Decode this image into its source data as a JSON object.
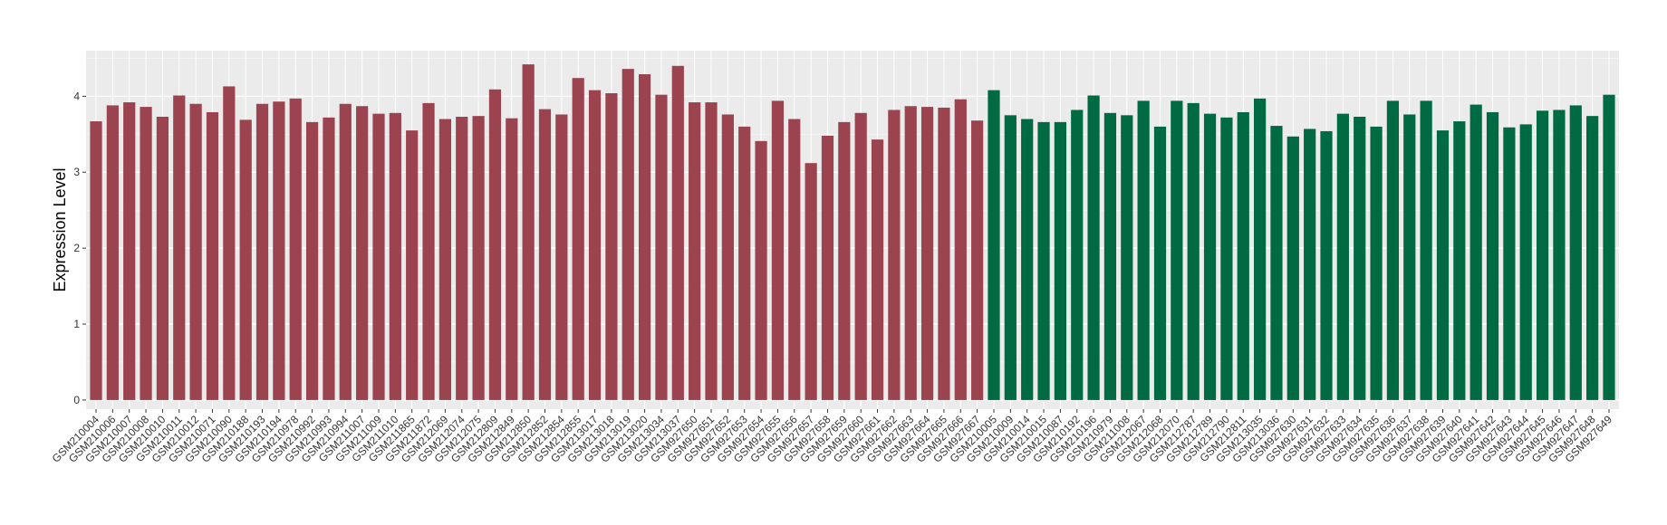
{
  "chart_data": {
    "type": "bar",
    "title": "",
    "xlabel": "",
    "ylabel": "Expression Level",
    "ylim": [
      -0.12,
      4.6
    ],
    "yticks": [
      0,
      1,
      2,
      3,
      4
    ],
    "grid": true,
    "panel_background": "#EBEBEB",
    "colors": {
      "group1": "#9B4450",
      "group2": "#006A43"
    },
    "categories": [
      "GSM210004",
      "GSM210006",
      "GSM210007",
      "GSM210008",
      "GSM210010",
      "GSM210011",
      "GSM210012",
      "GSM210071",
      "GSM210090",
      "GSM210188",
      "GSM210193",
      "GSM210194",
      "GSM210978",
      "GSM210992",
      "GSM210993",
      "GSM210994",
      "GSM211007",
      "GSM211009",
      "GSM211010",
      "GSM211865",
      "GSM211872",
      "GSM212069",
      "GSM212074",
      "GSM212075",
      "GSM212809",
      "GSM212849",
      "GSM212850",
      "GSM212852",
      "GSM212854",
      "GSM212855",
      "GSM213017",
      "GSM213018",
      "GSM213019",
      "GSM213020",
      "GSM213034",
      "GSM213037",
      "GSM927650",
      "GSM927651",
      "GSM927652",
      "GSM927653",
      "GSM927654",
      "GSM927655",
      "GSM927656",
      "GSM927657",
      "GSM927658",
      "GSM927659",
      "GSM927660",
      "GSM927661",
      "GSM927662",
      "GSM927663",
      "GSM927664",
      "GSM927665",
      "GSM927666",
      "GSM927667",
      "GSM210005",
      "GSM210009",
      "GSM210014",
      "GSM210015",
      "GSM210087",
      "GSM210192",
      "GSM210196",
      "GSM210979",
      "GSM211008",
      "GSM212067",
      "GSM212068",
      "GSM212070",
      "GSM212787",
      "GSM212789",
      "GSM212790",
      "GSM212811",
      "GSM213035",
      "GSM213036",
      "GSM927630",
      "GSM927631",
      "GSM927632",
      "GSM927633",
      "GSM927634",
      "GSM927635",
      "GSM927636",
      "GSM927637",
      "GSM927638",
      "GSM927639",
      "GSM927640",
      "GSM927641",
      "GSM927642",
      "GSM927643",
      "GSM927644",
      "GSM927645",
      "GSM927646",
      "GSM927647",
      "GSM927648",
      "GSM927649"
    ],
    "groups": [
      1,
      1,
      1,
      1,
      1,
      1,
      1,
      1,
      1,
      1,
      1,
      1,
      1,
      1,
      1,
      1,
      1,
      1,
      1,
      1,
      1,
      1,
      1,
      1,
      1,
      1,
      1,
      1,
      1,
      1,
      1,
      1,
      1,
      1,
      1,
      1,
      1,
      1,
      1,
      1,
      1,
      1,
      1,
      1,
      1,
      1,
      1,
      1,
      1,
      1,
      1,
      1,
      1,
      1,
      2,
      2,
      2,
      2,
      2,
      2,
      2,
      2,
      2,
      2,
      2,
      2,
      2,
      2,
      2,
      2,
      2,
      2,
      2,
      2,
      2,
      2,
      2,
      2,
      2,
      2,
      2,
      2,
      2,
      2,
      2,
      2,
      2,
      2,
      2,
      2,
      2,
      2
    ],
    "values": [
      3.67,
      3.88,
      3.92,
      3.86,
      3.73,
      4.01,
      3.9,
      3.79,
      4.13,
      3.69,
      3.9,
      3.93,
      3.97,
      3.66,
      3.72,
      3.9,
      3.87,
      3.77,
      3.78,
      3.55,
      3.91,
      3.7,
      3.73,
      3.74,
      4.09,
      3.71,
      4.42,
      3.83,
      3.76,
      4.24,
      4.08,
      4.04,
      4.36,
      4.29,
      4.02,
      4.4,
      3.92,
      3.92,
      3.76,
      3.6,
      3.41,
      3.94,
      3.7,
      3.12,
      3.48,
      3.66,
      3.78,
      3.43,
      3.82,
      3.87,
      3.86,
      3.85,
      3.96,
      3.68,
      4.08,
      3.75,
      3.7,
      3.66,
      3.66,
      3.82,
      4.01,
      3.78,
      3.75,
      3.94,
      3.6,
      3.94,
      3.91,
      3.77,
      3.72,
      3.79,
      3.97,
      3.61,
      3.47,
      3.57,
      3.54,
      3.77,
      3.73,
      3.6,
      3.94,
      3.76,
      3.94,
      3.55,
      3.67,
      3.89,
      3.79,
      3.59,
      3.63,
      3.81,
      3.82,
      3.88,
      3.74,
      4.02
    ]
  }
}
